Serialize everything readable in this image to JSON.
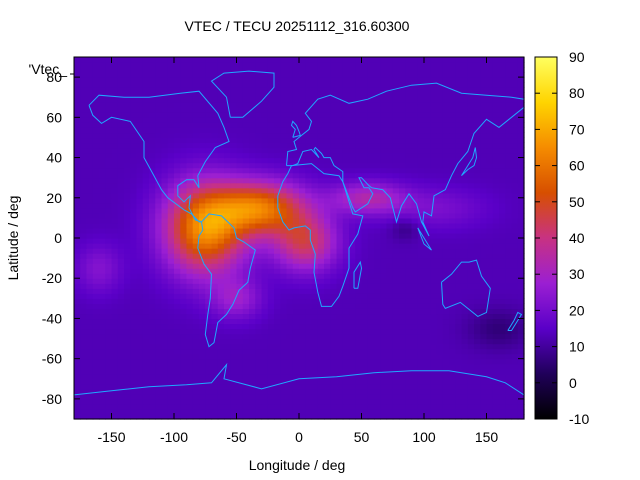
{
  "chart_data": {
    "type": "heatmap",
    "title": "VTEC / TECU 20251112_316.60300",
    "xlabel": "Longitude / deg",
    "ylabel": "Latitude / deg",
    "xlim": [
      -180,
      180
    ],
    "ylim": [
      -90,
      90
    ],
    "xticks": [
      -150,
      -100,
      -50,
      0,
      50,
      100,
      150
    ],
    "yticks": [
      -80,
      -60,
      -40,
      -20,
      0,
      20,
      40,
      60,
      80
    ],
    "colorbar": {
      "min": -10,
      "max": 90,
      "ticks": [
        -10,
        0,
        10,
        20,
        30,
        40,
        50,
        60,
        70,
        80,
        90
      ]
    },
    "key_label": "'Vtec_",
    "field": {
      "background_tecu": 13,
      "features": [
        {
          "lon": -75,
          "lat": 5,
          "sig_lon": 32,
          "sig_lat": 22,
          "amp": 52
        },
        {
          "lon": -30,
          "lat": 15,
          "sig_lon": 35,
          "sig_lat": 13,
          "amp": 45
        },
        {
          "lon": 5,
          "lat": -2,
          "sig_lon": 25,
          "sig_lat": 14,
          "amp": 30
        },
        {
          "lon": 55,
          "lat": 20,
          "sig_lon": 30,
          "sig_lat": 8,
          "amp": 20
        },
        {
          "lon": 110,
          "lat": 15,
          "sig_lon": 40,
          "sig_lat": 10,
          "amp": 8
        },
        {
          "lon": -160,
          "lat": -15,
          "sig_lon": 18,
          "sig_lat": 12,
          "amp": 10
        },
        {
          "lon": -50,
          "lat": -30,
          "sig_lon": 20,
          "sig_lat": 10,
          "amp": 14
        },
        {
          "lon": 160,
          "lat": -45,
          "sig_lon": 25,
          "sig_lat": 10,
          "amp": -7
        },
        {
          "lon": 85,
          "lat": 5,
          "sig_lon": 12,
          "sig_lat": 6,
          "amp": -6
        }
      ]
    }
  },
  "colors": {
    "coastline": "#1fa8ff",
    "palette_stops": [
      "#000000",
      "#20005a",
      "#5a00c8",
      "#9b1fd2",
      "#c83282",
      "#d74f00",
      "#f58c00",
      "#ffd400",
      "#ffff60"
    ]
  }
}
